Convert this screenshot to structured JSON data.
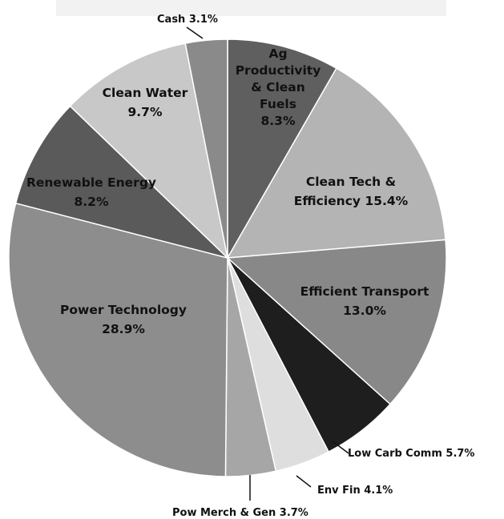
{
  "chart_data": {
    "type": "pie",
    "start": "12 o'clock",
    "direction": "clockwise",
    "slices": [
      {
        "label": "Ag Productivity & Clean Fuels",
        "display": [
          "Ag",
          "Productivity",
          "& Clean",
          "Fuels",
          "8.3%"
        ],
        "value": 8.3,
        "color": "#5f5f5f",
        "label_pos": "inside"
      },
      {
        "label": "Clean Tech & Efficiency",
        "display": [
          "Clean Tech &",
          "Efficiency 15.4%"
        ],
        "value": 15.4,
        "color": "#b4b4b4",
        "label_pos": "inside"
      },
      {
        "label": "Efficient Transport",
        "display": [
          "Efficient Transport",
          "13.0%"
        ],
        "value": 13.0,
        "color": "#888888",
        "label_pos": "inside"
      },
      {
        "label": "Low Carb Comm",
        "display": [
          "Low Carb Comm 5.7%"
        ],
        "value": 5.7,
        "color": "#1e1e1e",
        "label_pos": "outside"
      },
      {
        "label": "Env Fin",
        "display": [
          "Env Fin 4.1%"
        ],
        "value": 4.1,
        "color": "#dedede",
        "label_pos": "outside"
      },
      {
        "label": "Pow Merch & Gen",
        "display": [
          "Pow Merch & Gen 3.7%"
        ],
        "value": 3.7,
        "color": "#a6a6a6",
        "label_pos": "outside"
      },
      {
        "label": "Power Technology",
        "display": [
          "Power Technology",
          "28.9%"
        ],
        "value": 28.9,
        "color": "#8d8d8d",
        "label_pos": "inside"
      },
      {
        "label": "Renewable Energy",
        "display": [
          "Renewable Energy",
          "8.2%"
        ],
        "value": 8.2,
        "color": "#5a5a5a",
        "label_pos": "inside"
      },
      {
        "label": "Clean Water",
        "display": [
          "Clean Water",
          "9.7%"
        ],
        "value": 9.7,
        "color": "#c8c8c8",
        "label_pos": "inside"
      },
      {
        "label": "Cash",
        "display": [
          "Cash 3.1%"
        ],
        "value": 3.1,
        "color": "#8a8a8a",
        "label_pos": "outside"
      }
    ]
  }
}
